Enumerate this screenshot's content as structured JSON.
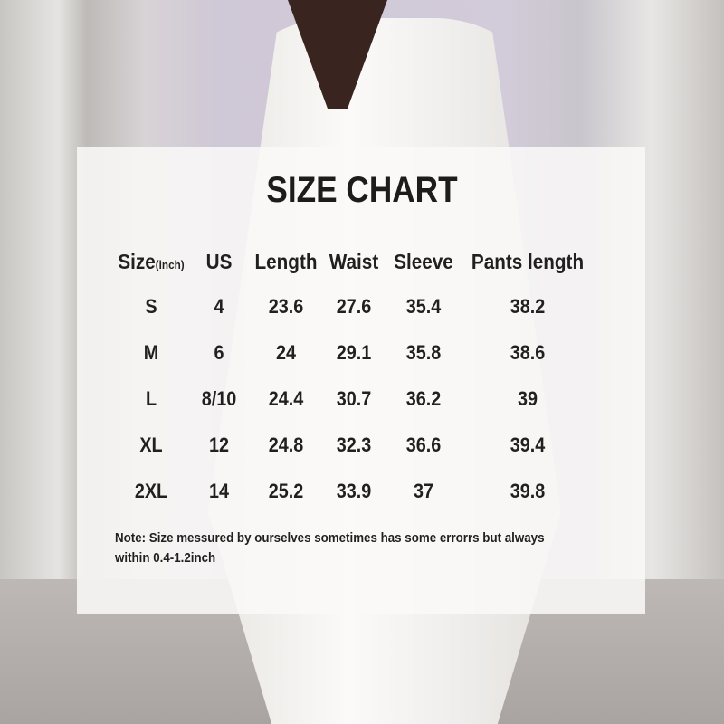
{
  "title": "SIZE CHART",
  "columns": [
    {
      "label": "Size",
      "sub": "(inch)"
    },
    {
      "label": "US"
    },
    {
      "label": "Length"
    },
    {
      "label": "Waist"
    },
    {
      "label": "Sleeve"
    },
    {
      "label": "Pants length"
    }
  ],
  "rows": [
    [
      "S",
      "4",
      "23.6",
      "27.6",
      "35.4",
      "38.2"
    ],
    [
      "M",
      "6",
      "24",
      "29.1",
      "35.8",
      "38.6"
    ],
    [
      "L",
      "8/10",
      "24.4",
      "30.7",
      "36.2",
      "39"
    ],
    [
      "XL",
      "12",
      "24.8",
      "32.3",
      "36.6",
      "39.4"
    ],
    [
      "2XL",
      "14",
      "25.2",
      "33.9",
      "37",
      "39.8"
    ]
  ],
  "note": "Note:  Size messured by ourselves sometimes has some errorrs but always within 0.4-1.2inch"
}
